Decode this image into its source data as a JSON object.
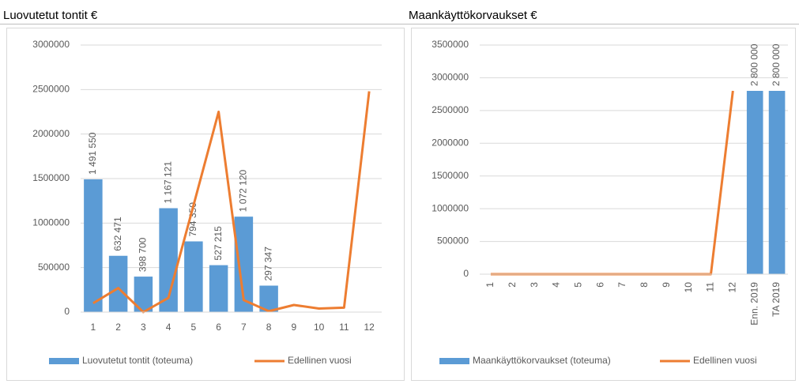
{
  "chart_data": [
    {
      "type": "bar",
      "title": "Luovutetut tontit €",
      "categories": [
        "1",
        "2",
        "3",
        "4",
        "5",
        "6",
        "7",
        "8",
        "9",
        "10",
        "11",
        "12"
      ],
      "series": [
        {
          "name": "Luovutetut tontit (toteuma)",
          "type": "bar",
          "color": "#5b9bd5",
          "values": [
            1491550,
            632471,
            398700,
            1167121,
            794350,
            527215,
            1072120,
            297347,
            null,
            null,
            null,
            null
          ],
          "value_labels": [
            "1 491 550",
            "632 471",
            "398 700",
            "1 167 121",
            "794 350",
            "527 215",
            "1 072 120",
            "297 347",
            null,
            null,
            null,
            null
          ]
        },
        {
          "name": "Edellinen vuosi",
          "type": "line",
          "color": "#ed7d31",
          "values": [
            100000,
            270000,
            0,
            160000,
            1200000,
            2250000,
            135000,
            10000,
            80000,
            40000,
            50000,
            2480000
          ]
        }
      ],
      "ylim": [
        0,
        3000000
      ],
      "yticks": [
        0,
        500000,
        1000000,
        1500000,
        2000000,
        2500000,
        3000000
      ],
      "grid": true,
      "legend": "bottom"
    },
    {
      "type": "bar",
      "title": "Maankäyttökorvaukset €",
      "categories": [
        "1",
        "2",
        "3",
        "4",
        "5",
        "6",
        "7",
        "8",
        "9",
        "10",
        "11",
        "12",
        "Enn. 2019",
        "TA 2019"
      ],
      "series": [
        {
          "name": "Maankäyttökorvaukset (toteuma)",
          "type": "bar",
          "color": "#5b9bd5",
          "values": [
            null,
            null,
            null,
            null,
            null,
            null,
            null,
            null,
            null,
            null,
            null,
            null,
            2800000,
            2800000
          ],
          "value_labels": [
            null,
            null,
            null,
            null,
            null,
            null,
            null,
            null,
            null,
            null,
            null,
            null,
            "2 800 000",
            "2 800 000"
          ]
        },
        {
          "name": "Edellinen vuosi",
          "type": "line",
          "color": "#ed7d31",
          "values": [
            0,
            0,
            0,
            0,
            0,
            0,
            0,
            0,
            0,
            0,
            0,
            2800000,
            null,
            null
          ]
        }
      ],
      "ylim": [
        0,
        3500000
      ],
      "yticks": [
        0,
        500000,
        1000000,
        1500000,
        2000000,
        2500000,
        3000000,
        3500000
      ],
      "grid": true,
      "legend": "bottom",
      "rotate_x_labels": true
    }
  ]
}
